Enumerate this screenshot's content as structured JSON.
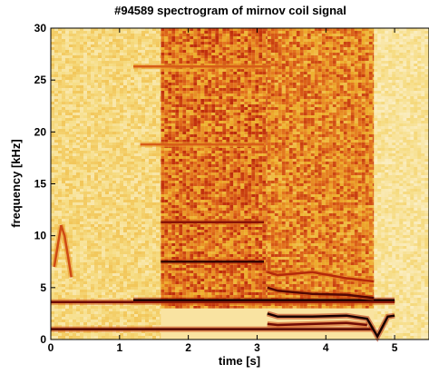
{
  "chart_data": {
    "type": "heatmap",
    "title": "#94589 spectrogram of mirnov coil signal",
    "xlabel": "time [s]",
    "ylabel": "frequency [kHz]",
    "xlim": [
      0,
      5.5
    ],
    "ylim": [
      0,
      30
    ],
    "xticks": [
      0,
      1,
      2,
      3,
      4,
      5
    ],
    "yticks": [
      0,
      5,
      10,
      15,
      20,
      25,
      30
    ],
    "grid": false,
    "colormap": [
      "#ffffff",
      "#f6dc83",
      "#eeb02f",
      "#e2701d",
      "#c2300d",
      "#7a0c05",
      "#1a0000"
    ],
    "bands": [
      {
        "t": [
          0,
          3.1,
          3.2,
          3.5,
          4.0,
          4.4,
          4.7
        ],
        "f": [
          1.0,
          1.0,
          1.0,
          1.0,
          1.0,
          1.0,
          1.0
        ],
        "intensity": 0.9
      },
      {
        "t": [
          0,
          5.0
        ],
        "f": [
          3.6,
          3.6
        ],
        "intensity": 0.85
      },
      {
        "t": [
          1.2,
          3.1,
          3.2,
          4.0,
          4.6,
          5.0
        ],
        "f": [
          3.8,
          3.8,
          3.8,
          3.8,
          3.8,
          3.8
        ],
        "intensity": 1.0
      },
      {
        "t": [
          1.6,
          3.1
        ],
        "f": [
          7.5,
          7.5
        ],
        "intensity": 0.95
      },
      {
        "t": [
          1.6,
          3.1
        ],
        "f": [
          11.3,
          11.3
        ],
        "intensity": 0.8
      },
      {
        "t": [
          1.3,
          3.1
        ],
        "f": [
          18.8,
          18.8
        ],
        "intensity": 0.55
      },
      {
        "t": [
          1.2,
          3.2
        ],
        "f": [
          26.3,
          26.3
        ],
        "intensity": 0.55
      },
      {
        "t": [
          3.15,
          3.3,
          3.8,
          4.3,
          4.7
        ],
        "f": [
          6.5,
          6.2,
          6.5,
          5.9,
          5.6
        ],
        "intensity": 0.7
      },
      {
        "t": [
          3.15,
          3.3,
          3.8,
          4.3,
          4.7
        ],
        "f": [
          5.0,
          4.7,
          4.4,
          4.3,
          4.0
        ],
        "intensity": 0.9
      },
      {
        "t": [
          3.15,
          3.3,
          3.8,
          4.3,
          4.6,
          4.75,
          4.9,
          5.0
        ],
        "f": [
          2.5,
          2.2,
          2.2,
          2.3,
          2.0,
          0.3,
          2.2,
          2.3
        ],
        "intensity": 1.0
      },
      {
        "t": [
          3.15,
          3.3,
          3.8,
          4.3,
          4.6
        ],
        "f": [
          1.5,
          1.4,
          1.5,
          1.6,
          1.4
        ],
        "intensity": 0.85
      },
      {
        "t": [
          0.05,
          0.1,
          0.15,
          0.2,
          0.25,
          0.3
        ],
        "f": [
          7.0,
          9.0,
          11.0,
          10.0,
          8.0,
          6.0
        ],
        "intensity": 0.6
      }
    ],
    "broadband_regions": [
      {
        "t": [
          1.6,
          3.15
        ],
        "f": [
          3.0,
          30.0
        ],
        "intensity": 0.55
      },
      {
        "t": [
          3.15,
          4.7
        ],
        "f": [
          3.0,
          30.0
        ],
        "intensity": 0.5
      },
      {
        "t": [
          0.0,
          1.6
        ],
        "f": [
          0.0,
          30.0
        ],
        "intensity": 0.2
      },
      {
        "t": [
          4.7,
          5.5
        ],
        "f": [
          0.0,
          30.0
        ],
        "intensity": 0.15
      }
    ]
  }
}
